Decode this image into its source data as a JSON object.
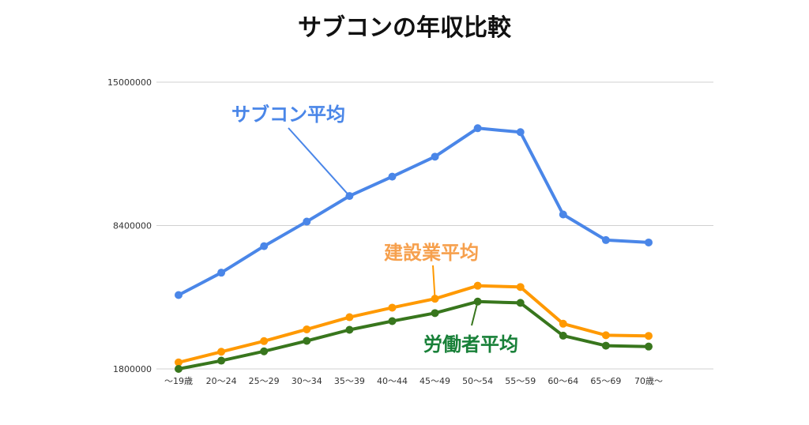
{
  "chart_data": {
    "type": "line",
    "title": "サブコンの年収比較",
    "xlabel": "",
    "ylabel": "",
    "categories": [
      "〜19歳",
      "20〜24",
      "25〜29",
      "30〜34",
      "35〜39",
      "40〜44",
      "45〜49",
      "50〜54",
      "55〜59",
      "60〜64",
      "65〜69",
      "70歳〜"
    ],
    "yticks": [
      "1800000",
      "8400000",
      "15000000"
    ],
    "ylim": [
      1800000,
      15000000
    ],
    "grid": true,
    "series": [
      {
        "name": "サブコン平均",
        "color": "#4a86e8",
        "values": [
          5200000,
          6230000,
          7450000,
          8580000,
          9760000,
          10650000,
          11570000,
          12880000,
          12700000,
          8910000,
          7730000,
          7620000
        ]
      },
      {
        "name": "建設業平均",
        "color": "#ff9900",
        "values": [
          2100000,
          2590000,
          3080000,
          3620000,
          4180000,
          4620000,
          5030000,
          5630000,
          5570000,
          3880000,
          3350000,
          3320000
        ]
      },
      {
        "name": "労働者平均",
        "color": "#38761d",
        "values": [
          1800000,
          2180000,
          2610000,
          3090000,
          3600000,
          4000000,
          4370000,
          4900000,
          4840000,
          3330000,
          2870000,
          2830000
        ]
      }
    ],
    "annotations": [
      {
        "text": "サブコン平均",
        "series": 0,
        "point": 4,
        "color": "#4a86e8"
      },
      {
        "text": "建設業平均",
        "series": 1,
        "point": 6,
        "color": "#f6a04d"
      },
      {
        "text": "労働者平均",
        "series": 2,
        "point": 7,
        "color": "#188038"
      }
    ]
  }
}
